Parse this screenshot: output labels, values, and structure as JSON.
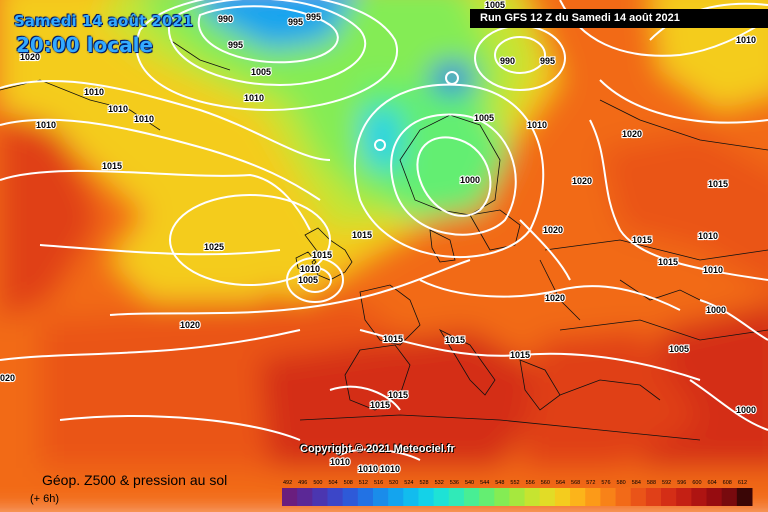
{
  "header": {
    "date_line": "Samedi 14 août 2021",
    "time_line": "20:00 locale",
    "run_label": "Run GFS 12 Z du Samedi 14 août 2021"
  },
  "footer": {
    "copyright": "Copyright © 2021 Meteociel.fr",
    "title": "Géop. Z500 & pression au sol",
    "subtitle": "(+ 6h)"
  },
  "legend": {
    "ticks": [
      "492",
      "496",
      "500",
      "504",
      "508",
      "512",
      "516",
      "520",
      "524",
      "528",
      "532",
      "536",
      "540",
      "544",
      "548",
      "552",
      "556",
      "560",
      "564",
      "568",
      "572",
      "576",
      "580",
      "584",
      "588",
      "592",
      "596",
      "600",
      "604",
      "608",
      "612"
    ],
    "colors": [
      "#6a1e7e",
      "#5b2896",
      "#4b36b0",
      "#3c46c8",
      "#2e5ad8",
      "#2272e4",
      "#1a8cea",
      "#14a4ee",
      "#12bcee",
      "#14d2e8",
      "#1ee2d6",
      "#30eab8",
      "#48ee94",
      "#64ee72",
      "#84ec54",
      "#a6e83e",
      "#c6e430",
      "#e2dc26",
      "#f4cc1e",
      "#fcb41a",
      "#fc9a18",
      "#f88218",
      "#f26a18",
      "#ea5418",
      "#e04018",
      "#d42e16",
      "#c42014",
      "#ae1412",
      "#960c10",
      "#780a0e",
      "#3a0606"
    ]
  },
  "pressure_labels": [
    {
      "id": "990-a",
      "text": "990"
    },
    {
      "id": "995-a",
      "text": "995"
    },
    {
      "id": "995-b",
      "text": "995"
    },
    {
      "id": "995-c",
      "text": "995"
    },
    {
      "id": "1020-nw",
      "text": "1020"
    },
    {
      "id": "1005-a",
      "text": "1005"
    },
    {
      "id": "1010-a",
      "text": "1010"
    },
    {
      "id": "1010-b",
      "text": "1010"
    },
    {
      "id": "1010-c",
      "text": "1010"
    },
    {
      "id": "1010-d",
      "text": "1010"
    },
    {
      "id": "1010-e",
      "text": "1010"
    },
    {
      "id": "1015-atl",
      "text": "1015"
    },
    {
      "id": "1025-atl",
      "text": "1025"
    },
    {
      "id": "1020-atl",
      "text": "1020"
    },
    {
      "id": "1020-w",
      "text": "020"
    },
    {
      "id": "990-n",
      "text": "990"
    },
    {
      "id": "995-n",
      "text": "995"
    },
    {
      "id": "1005-top",
      "text": "1005"
    },
    {
      "id": "1010-ne",
      "text": "1010"
    },
    {
      "id": "1005-nor",
      "text": "1005"
    },
    {
      "id": "1010-nor",
      "text": "1010"
    },
    {
      "id": "1000-scan",
      "text": "1000"
    },
    {
      "id": "1020-ru",
      "text": "1020"
    },
    {
      "id": "1020-ru2",
      "text": "1020"
    },
    {
      "id": "1015-ru",
      "text": "1015"
    },
    {
      "id": "1020-bal",
      "text": "1020"
    },
    {
      "id": "1015-bal",
      "text": "1015"
    },
    {
      "id": "1010-ru",
      "text": "1010"
    },
    {
      "id": "1015-e",
      "text": "1015"
    },
    {
      "id": "1010-e2",
      "text": "1010"
    },
    {
      "id": "1000-e",
      "text": "1000"
    },
    {
      "id": "1015-uk",
      "text": "1015"
    },
    {
      "id": "1010-uk",
      "text": "1010"
    },
    {
      "id": "1005-uk",
      "text": "1005"
    },
    {
      "id": "1015-nl",
      "text": "1015"
    },
    {
      "id": "1020-pl",
      "text": "1020"
    },
    {
      "id": "1015-fr",
      "text": "1015"
    },
    {
      "id": "1015-ch",
      "text": "1015"
    },
    {
      "id": "1015-bk",
      "text": "1015"
    },
    {
      "id": "1005-tr",
      "text": "1005"
    },
    {
      "id": "1015-es",
      "text": "1015"
    },
    {
      "id": "1015-es2",
      "text": "1015"
    },
    {
      "id": "1000-me",
      "text": "1000"
    },
    {
      "id": "1010-af",
      "text": "1010"
    },
    {
      "id": "1010-af2",
      "text": "1010"
    },
    {
      "id": "1010-af3",
      "text": "1010"
    }
  ]
}
